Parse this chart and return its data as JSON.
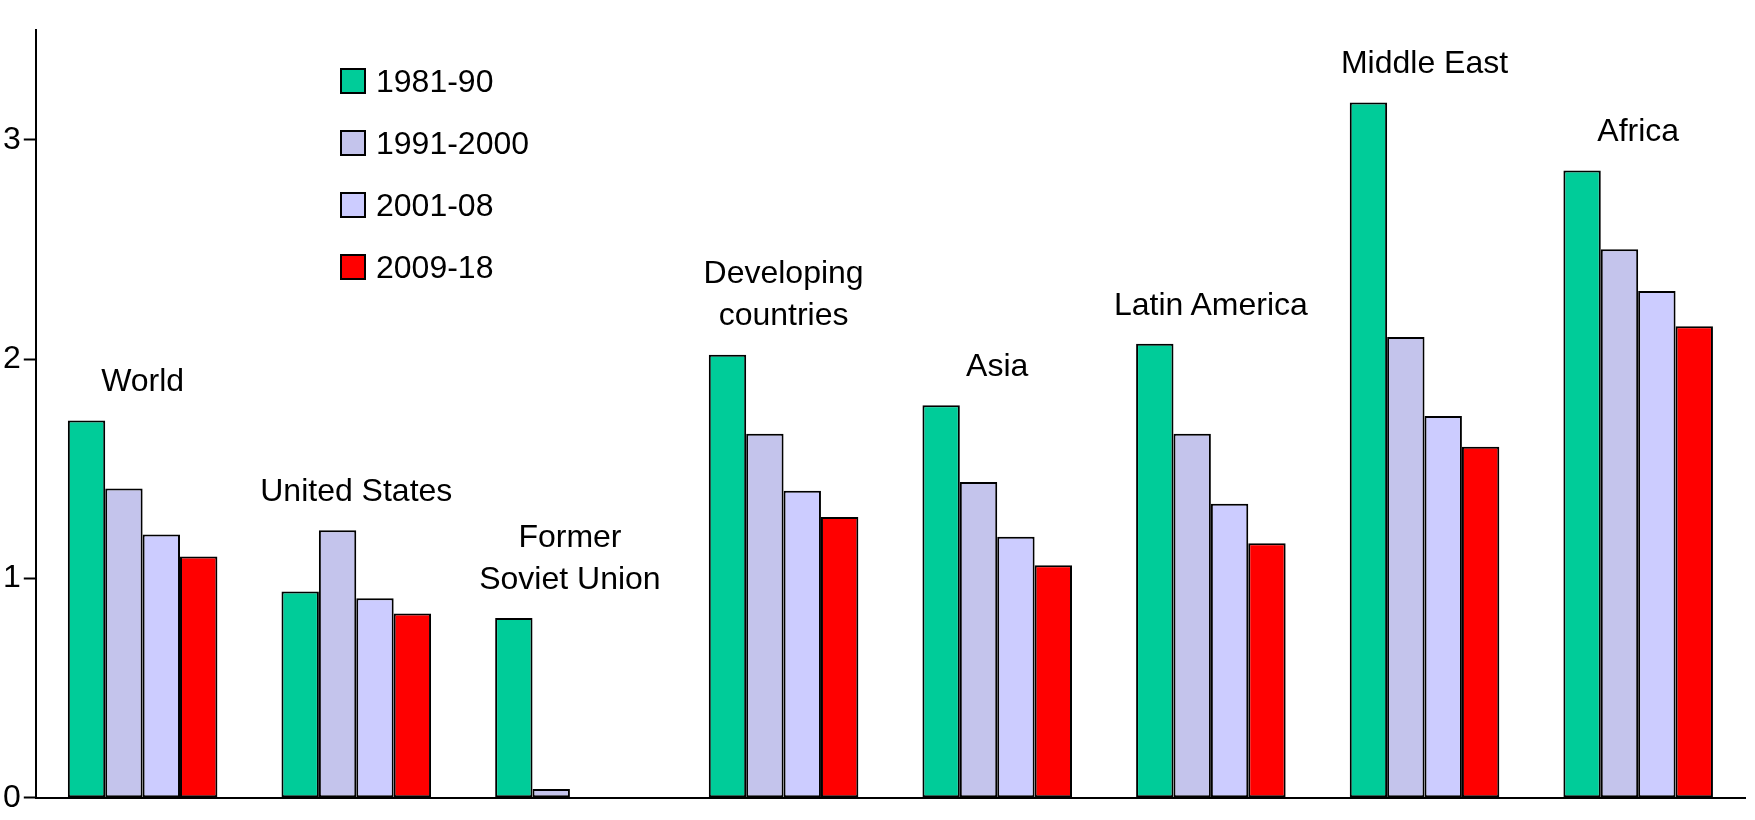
{
  "chart_data": {
    "type": "bar",
    "categories": [
      "World",
      "United States",
      "Former Soviet Union",
      "Developing countries",
      "Asia",
      "Latin America",
      "Middle East",
      "Africa"
    ],
    "series": [
      {
        "name": "1981-90",
        "color": "#00cc99",
        "values": [
          1.72,
          0.94,
          0.82,
          2.02,
          1.79,
          2.07,
          3.17,
          2.86
        ]
      },
      {
        "name": "1991-2000",
        "color": "#c4c4ec",
        "values": [
          1.41,
          1.22,
          0.04,
          1.66,
          1.44,
          1.66,
          2.1,
          2.5
        ]
      },
      {
        "name": "2001-08",
        "color": "#ccccff",
        "values": [
          1.2,
          0.91,
          null,
          1.4,
          1.19,
          1.34,
          1.74,
          2.31
        ]
      },
      {
        "name": "2009-18",
        "color": "#ff0000",
        "values": [
          1.1,
          0.84,
          null,
          1.28,
          1.06,
          1.16,
          1.6,
          2.15
        ]
      }
    ],
    "ylim": [
      0,
      3.5
    ],
    "yticks": [
      0,
      1,
      2,
      3
    ],
    "grid": false,
    "legend": "top left",
    "tick_labels": "y"
  }
}
